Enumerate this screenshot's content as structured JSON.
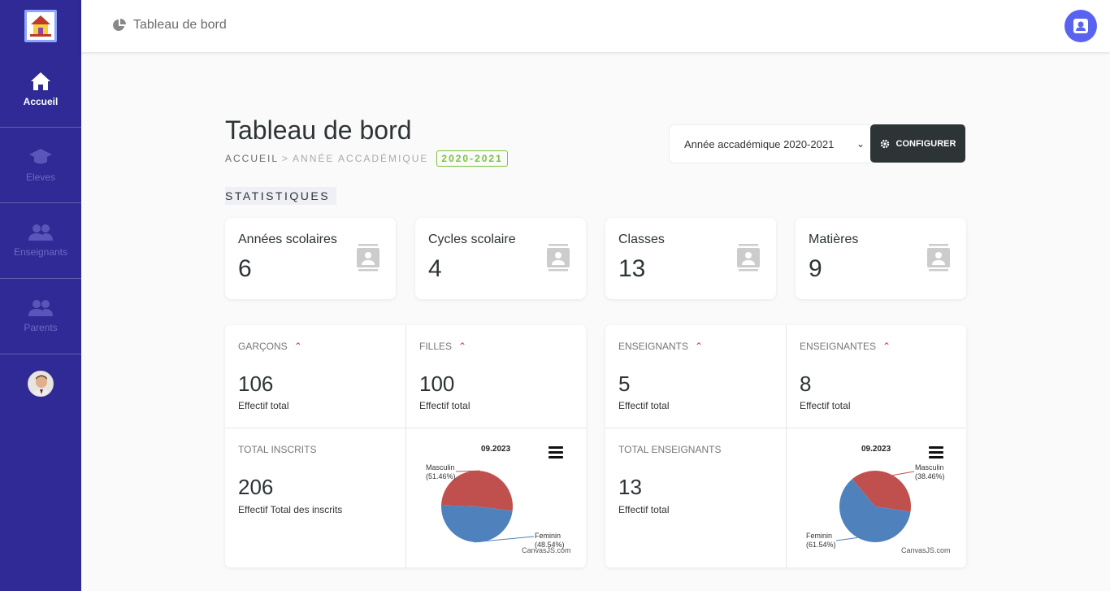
{
  "sidebar": {
    "items": [
      {
        "label": "Accueil",
        "icon": "home-icon",
        "active": true
      },
      {
        "label": "Eleves",
        "icon": "graduation-cap-icon",
        "active": false
      },
      {
        "label": "Enseignants",
        "icon": "users-icon",
        "active": false
      },
      {
        "label": "Parents",
        "icon": "users-icon",
        "active": false
      }
    ]
  },
  "header": {
    "title": "Tableau de bord",
    "icon": "pie-chart-icon"
  },
  "page": {
    "title": "Tableau de bord",
    "breadcrumb": {
      "home": "ACCUEIL",
      "separator": ">",
      "year_label": "ANNÉE ACCADÉMIQUE",
      "year_badge": "2020-2021"
    },
    "year_select": "Année accadémique 2020-2021",
    "config_button": "CONFIGURER",
    "section": "STATISTIQUES"
  },
  "stats": [
    {
      "label": "Années scolaires",
      "value": "6"
    },
    {
      "label": "Cycles scolaire",
      "value": "4"
    },
    {
      "label": "Classes",
      "value": "13"
    },
    {
      "label": "Matières",
      "value": "9"
    }
  ],
  "students": {
    "boys": {
      "label": "GARÇONS",
      "value": "106",
      "sub": "Effectif total"
    },
    "girls": {
      "label": "FILLES",
      "value": "100",
      "sub": "Effectif total"
    },
    "total": {
      "label": "TOTAL INSCRITS",
      "value": "206",
      "sub": "Effectif Total des inscrits"
    }
  },
  "teachers": {
    "male": {
      "label": "ENSEIGNANTS",
      "value": "5",
      "sub": "Effectif total"
    },
    "female": {
      "label": "ENSEIGNANTES",
      "value": "8",
      "sub": "Effectif total"
    },
    "total": {
      "label": "TOTAL ENSEIGNANTS",
      "value": "13",
      "sub": "Effectif total"
    }
  },
  "colors": {
    "masculin": "#c0504e",
    "feminin": "#4f81bc",
    "sidebar": "#2f2a95",
    "badge": "#7cc13c"
  },
  "chart_data": [
    {
      "type": "pie",
      "title": "09.2023",
      "credit": "CanvasJS.com",
      "series": [
        {
          "name": "Masculin",
          "value": 51.46,
          "label": "(51.46%)"
        },
        {
          "name": "Feminin",
          "value": 48.54,
          "label": "(48.54%)"
        }
      ]
    },
    {
      "type": "pie",
      "title": "09.2023",
      "credit": "CanvasJS.com",
      "series": [
        {
          "name": "Masculin",
          "value": 38.46,
          "label": "(38.46%)"
        },
        {
          "name": "Feminin",
          "value": 61.54,
          "label": "(61.54%)"
        }
      ]
    }
  ]
}
